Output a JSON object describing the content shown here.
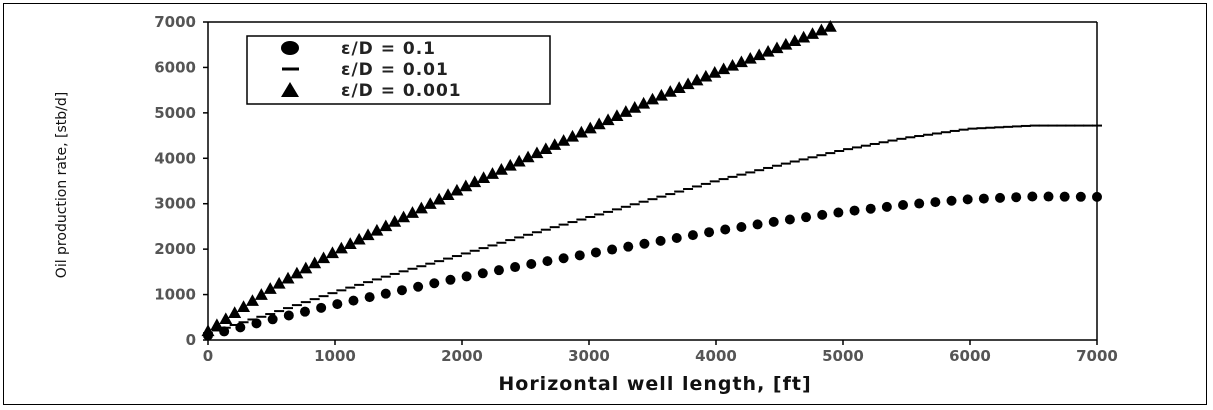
{
  "chart_data": {
    "type": "scatter",
    "xlabel": "Horizontal well length, [ft]",
    "ylabel": "Oil production rate, [stb/d]",
    "xlim": [
      0,
      7000
    ],
    "ylim": [
      0,
      7000
    ],
    "xticks": [
      "0",
      "1000",
      "2000",
      "3000",
      "4000",
      "5000",
      "6000",
      "7000"
    ],
    "yticks": [
      "0",
      "1000",
      "2000",
      "3000",
      "4000",
      "5000",
      "6000",
      "7000"
    ],
    "grid": false,
    "legend_position": "top-left",
    "series": [
      {
        "name": "ε/D = 0.1",
        "marker": "circle",
        "x": [
          0,
          500,
          1000,
          1500,
          2000,
          2500,
          3000,
          3500,
          4000,
          4500,
          5000,
          5500,
          6000,
          6500,
          7000
        ],
        "y": [
          100,
          450,
          780,
          1080,
          1380,
          1650,
          1900,
          2150,
          2400,
          2620,
          2820,
          2980,
          3100,
          3160,
          3150
        ]
      },
      {
        "name": "ε/D = 0.01",
        "marker": "dash",
        "x": [
          0,
          500,
          1000,
          1500,
          2000,
          2500,
          3000,
          3500,
          4000,
          4500,
          5000,
          5500,
          6000,
          6500,
          7000
        ],
        "y": [
          150,
          580,
          1050,
          1480,
          1880,
          2300,
          2700,
          3100,
          3500,
          3850,
          4180,
          4450,
          4650,
          4720,
          4720
        ]
      },
      {
        "name": "ε/D = 0.001",
        "marker": "triangle",
        "x": [
          0,
          500,
          1000,
          1500,
          2000,
          2500,
          3000,
          3500,
          4000,
          4500,
          4900
        ],
        "y": [
          200,
          1150,
          1950,
          2650,
          3350,
          4000,
          4650,
          5300,
          5900,
          6450,
          6900
        ]
      }
    ]
  }
}
